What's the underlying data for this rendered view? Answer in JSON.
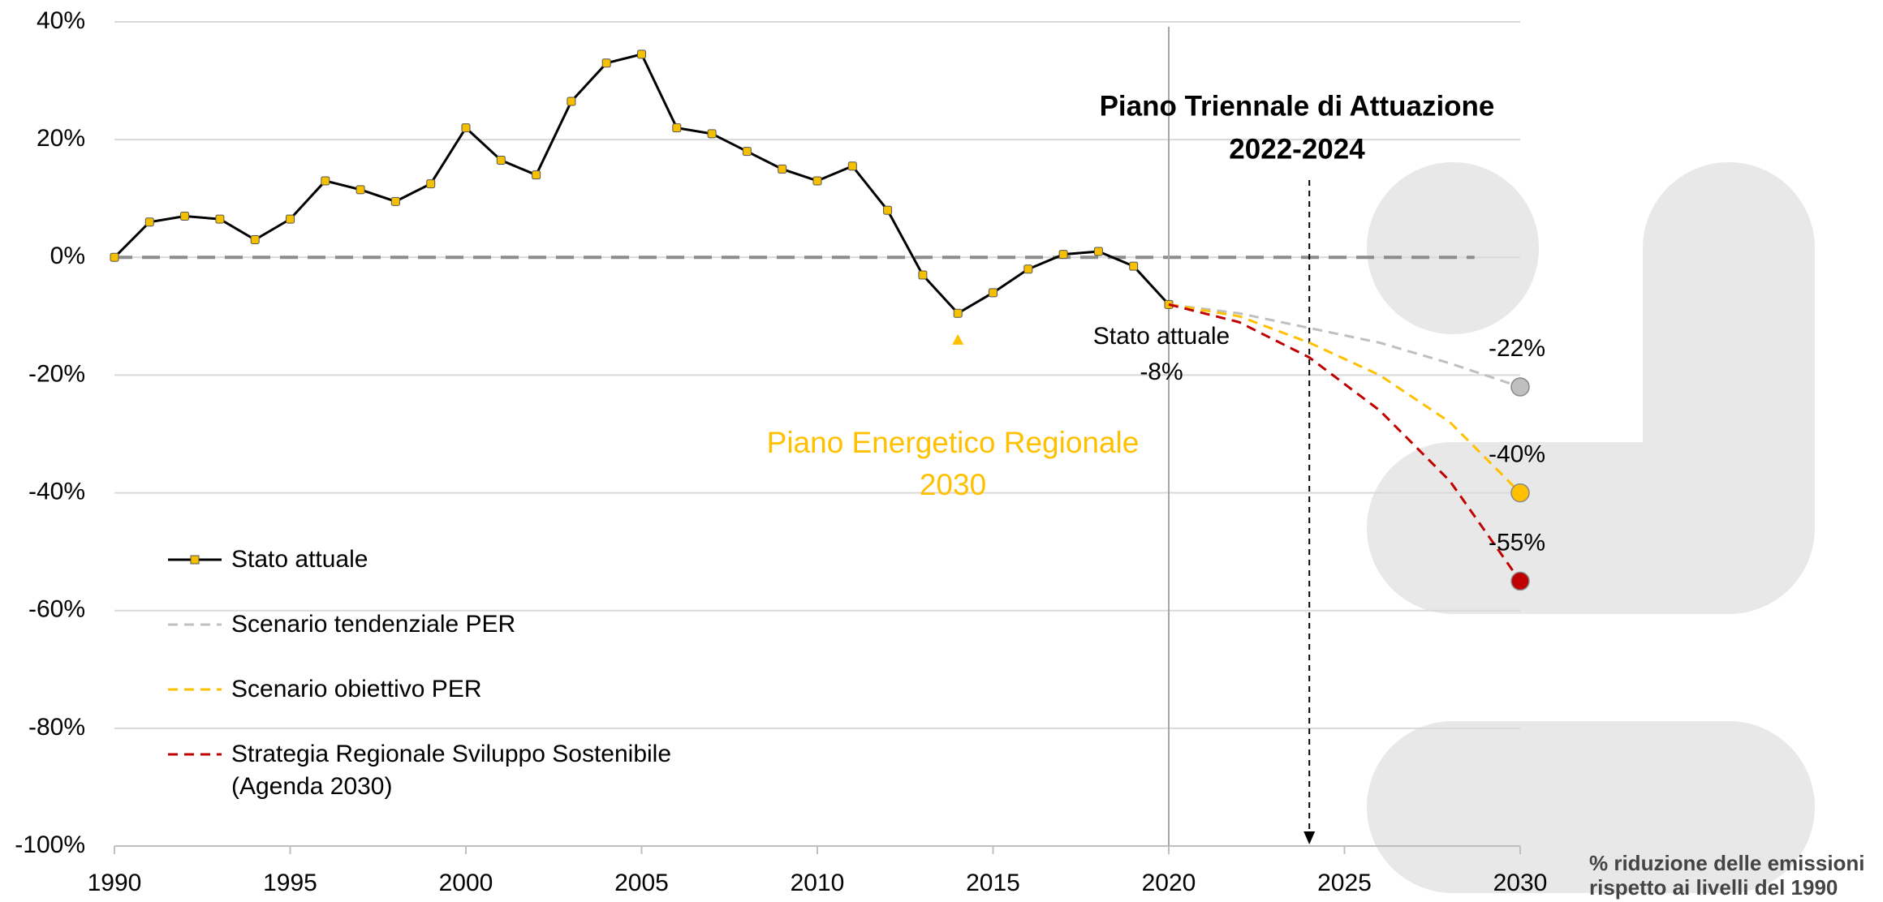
{
  "chart_data": {
    "type": "line",
    "xlim": [
      1990,
      2030
    ],
    "xticks": [
      1990,
      1995,
      2000,
      2005,
      2010,
      2015,
      2020,
      2025,
      2030
    ],
    "ylim": [
      -100,
      40
    ],
    "yticks": [
      {
        "value": -100,
        "label": "-100%"
      },
      {
        "value": -80,
        "label": "-80%"
      },
      {
        "value": -60,
        "label": "-60%"
      },
      {
        "value": -40,
        "label": "-40%"
      },
      {
        "value": -20,
        "label": "-20%"
      },
      {
        "value": 0,
        "label": "0%"
      },
      {
        "value": 20,
        "label": "20%"
      },
      {
        "value": 40,
        "label": "40%"
      }
    ],
    "grid": true,
    "reference_y": 0,
    "reference_x": 2020,
    "arrow_x": 2024,
    "series": [
      {
        "name": "Stato attuale",
        "color": "#000000",
        "marker_color": "#f5c000",
        "x": [
          1990,
          1991,
          1992,
          1993,
          1994,
          1995,
          1996,
          1997,
          1998,
          1999,
          2000,
          2001,
          2002,
          2003,
          2004,
          2005,
          2006,
          2007,
          2008,
          2009,
          2010,
          2011,
          2012,
          2013,
          2014,
          2015,
          2016,
          2017,
          2018,
          2019,
          2020
        ],
        "values": [
          0,
          6,
          7,
          6.5,
          3,
          6.5,
          13,
          11.5,
          9.5,
          12.5,
          22,
          16.5,
          14,
          26.5,
          33,
          34.5,
          22,
          21,
          18,
          15,
          13,
          15.5,
          8,
          -3,
          -9.5,
          -6,
          -2,
          0.5,
          1,
          -1.5,
          -8
        ]
      },
      {
        "name": "Scenario tendenziale PER",
        "color": "#bfbfbf",
        "dashed": true,
        "x": [
          2020,
          2022,
          2024,
          2026,
          2028,
          2030
        ],
        "values": [
          -8,
          -9.5,
          -12,
          -14.5,
          -18,
          -22
        ],
        "value_labels": [
          null,
          null,
          null,
          null,
          null,
          "-22%"
        ]
      },
      {
        "name": "Scenario obiettivo PER",
        "color": "#ffc000",
        "dashed": true,
        "x": [
          2020,
          2022,
          2024,
          2026,
          2028,
          2030
        ],
        "values": [
          -8,
          -10,
          -14.5,
          -20,
          -28,
          -40
        ],
        "value_labels": [
          null,
          null,
          null,
          null,
          null,
          "-40%"
        ]
      },
      {
        "name": "Strategia Regionale Sviluppo Sostenibile (Agenda 2030)",
        "color": "#c00000",
        "dashed": true,
        "x": [
          2020,
          2022,
          2024,
          2026,
          2028,
          2030
        ],
        "values": [
          -8,
          -11,
          -17,
          -26,
          -38,
          -55
        ],
        "value_labels": [
          null,
          null,
          null,
          null,
          null,
          "-55%"
        ]
      }
    ],
    "annotations": [
      {
        "lines": [
          "Piano Triennale di Attuazione",
          "2022-2024"
        ]
      },
      {
        "lines": [
          "Stato attuale",
          "-8%"
        ]
      },
      {
        "lines": [
          "Piano Energetico Regionale",
          "2030"
        ],
        "marker": {
          "x": 2014,
          "y": -14
        },
        "color": "#ffc000"
      }
    ],
    "footnote": [
      "% riduzione delle emissioni",
      "rispetto ai livelli del 1990"
    ]
  }
}
